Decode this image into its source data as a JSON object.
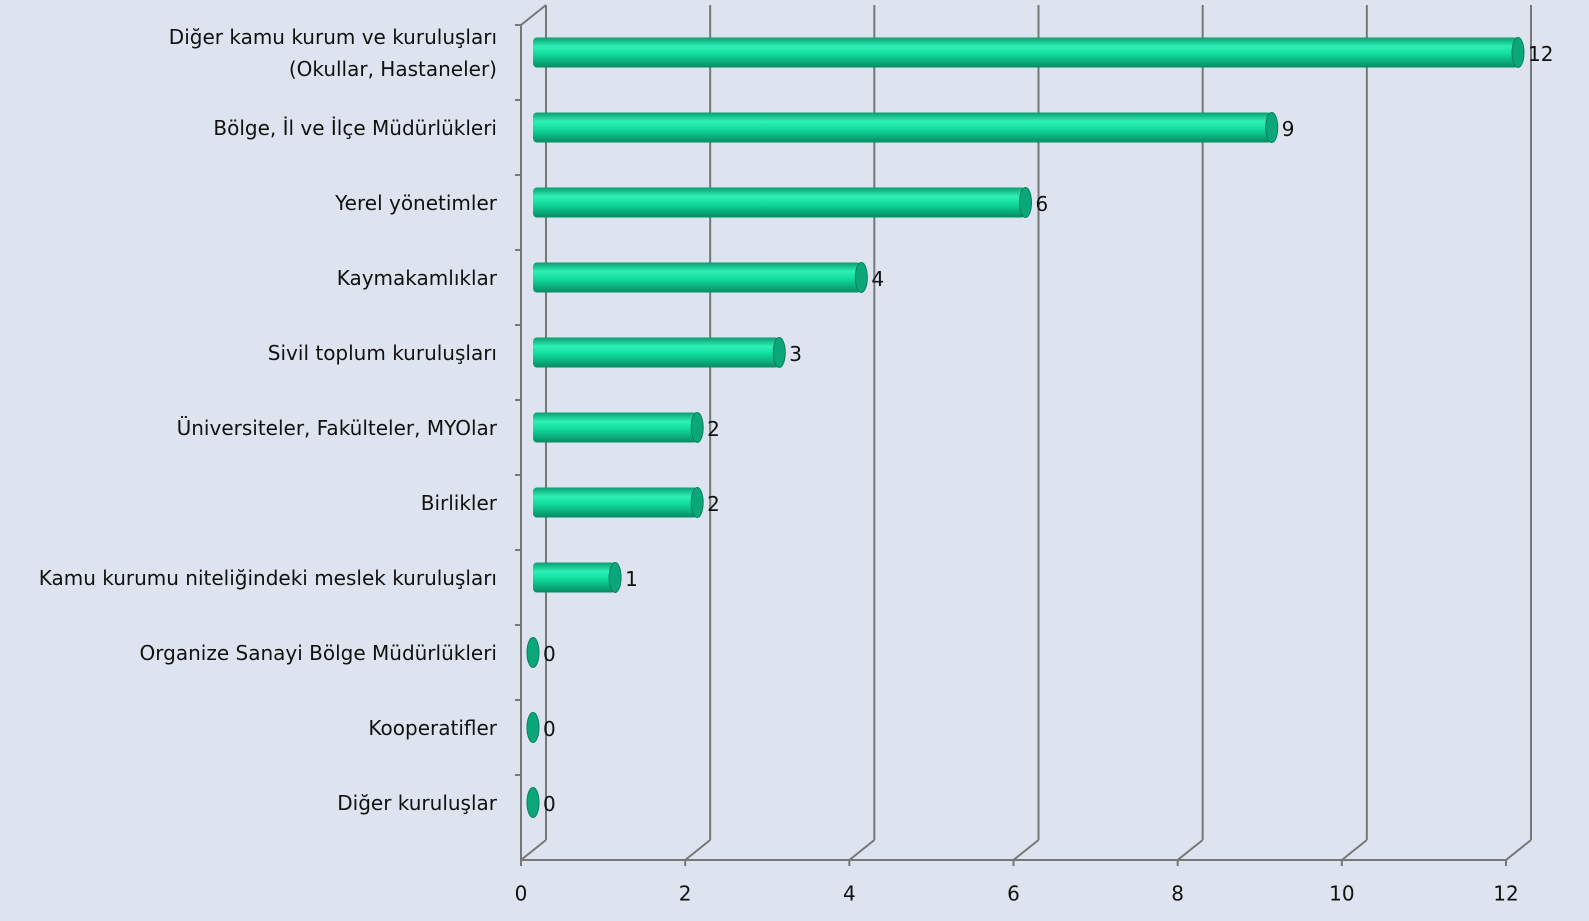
{
  "chart_data": {
    "type": "bar",
    "orientation": "horizontal",
    "categories": [
      "Diğer kamu kurum ve kuruluşları (Okullar, Hastaneler)",
      "Bölge, İl ve İlçe Müdürlükleri",
      "Yerel yönetimler",
      "Kaymakamlıklar",
      "Sivil toplum kuruluşları",
      "Üniversiteler, Fakülteler, MYOlar",
      "Birlikler",
      "Kamu kurumu niteliğindeki meslek kuruluşları",
      "Organize Sanayi Bölge Müdürlükleri",
      "Kooperatifler",
      "Diğer kuruluşlar"
    ],
    "values": [
      12,
      9,
      6,
      4,
      3,
      2,
      2,
      1,
      0,
      0,
      0
    ],
    "color": "#10dc9c",
    "xlim": [
      0,
      12
    ],
    "xticks": [
      0,
      2,
      4,
      6,
      8,
      10,
      12
    ],
    "grid": true
  }
}
